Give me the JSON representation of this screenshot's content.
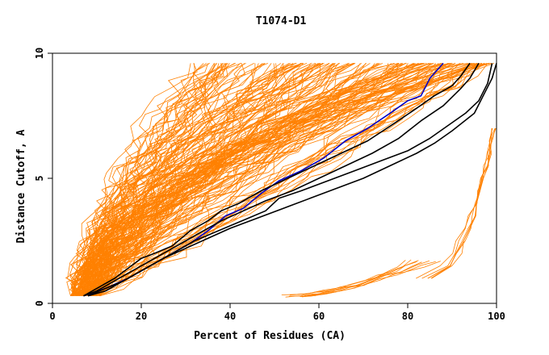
{
  "chart_data": {
    "type": "line",
    "title": "T1074-D1",
    "xlabel": "Percent of Residues (CA)",
    "ylabel": "Distance Cutoff, A",
    "xlim": [
      0,
      100
    ],
    "ylim": [
      0,
      10
    ],
    "x_ticks": [
      "0",
      "20",
      "40",
      "60",
      "80",
      "100"
    ],
    "y_ticks": [
      "0",
      "5",
      "10"
    ],
    "grid": false,
    "legend": "none",
    "colors": {
      "models": "#ff8000",
      "highlight_black": "#000000",
      "highlight_blue": "#0000c8"
    },
    "series": [
      {
        "color": "#0000c8",
        "x": [
          7,
          12,
          17,
          20,
          23,
          27,
          31,
          35,
          39,
          43,
          47,
          51,
          56,
          61,
          66,
          71,
          76,
          80,
          83,
          85,
          88
        ],
        "y": [
          0.3,
          0.6,
          1.0,
          1.3,
          1.6,
          2.0,
          2.4,
          2.9,
          3.5,
          3.8,
          4.4,
          4.9,
          5.3,
          5.8,
          6.5,
          7.0,
          7.6,
          8.1,
          8.3,
          9.0,
          9.6
        ]
      },
      {
        "color": "#000000",
        "x": [
          7,
          10,
          14,
          18,
          22,
          26,
          30,
          34,
          38,
          43,
          48,
          54,
          60,
          66,
          72,
          78,
          83,
          88,
          92,
          94,
          96
        ],
        "y": [
          0.3,
          0.5,
          0.9,
          1.3,
          1.7,
          2.1,
          2.5,
          2.9,
          3.3,
          3.7,
          4.1,
          4.5,
          5.0,
          5.5,
          6.0,
          6.6,
          7.3,
          7.9,
          8.6,
          9.0,
          9.6
        ]
      },
      {
        "color": "#000000",
        "x": [
          7,
          10,
          14,
          17,
          20,
          23,
          27,
          31,
          35,
          38,
          42,
          47,
          53,
          59,
          65,
          71,
          77,
          82,
          86,
          90,
          92,
          94
        ],
        "y": [
          0.3,
          0.6,
          1.0,
          1.4,
          1.8,
          2.0,
          2.3,
          2.9,
          3.3,
          3.7,
          4.0,
          4.5,
          5.0,
          5.5,
          6.0,
          6.5,
          7.2,
          7.8,
          8.3,
          8.7,
          9.1,
          9.6
        ]
      },
      {
        "color": "#000000",
        "x": [
          8,
          12,
          16,
          20,
          25,
          30,
          35,
          40,
          46,
          52,
          58,
          64,
          70,
          76,
          82,
          86,
          90,
          95,
          97,
          99,
          100
        ],
        "y": [
          0.3,
          0.6,
          0.9,
          1.3,
          1.8,
          2.2,
          2.6,
          3.0,
          3.4,
          3.8,
          4.2,
          4.6,
          5.0,
          5.5,
          6.0,
          6.4,
          6.9,
          7.6,
          8.3,
          9.0,
          9.6
        ]
      },
      {
        "color": "#000000",
        "x": [
          8,
          12,
          16,
          20,
          24,
          28,
          32,
          36,
          40,
          44,
          48,
          51,
          56,
          62,
          68,
          74,
          80,
          85,
          89,
          93,
          96,
          98,
          99
        ],
        "y": [
          0.3,
          0.5,
          0.9,
          1.3,
          1.7,
          2.1,
          2.5,
          2.8,
          3.1,
          3.4,
          3.7,
          4.2,
          4.5,
          4.9,
          5.3,
          5.7,
          6.1,
          6.6,
          7.1,
          7.6,
          8.1,
          8.8,
          9.6
        ]
      }
    ]
  }
}
